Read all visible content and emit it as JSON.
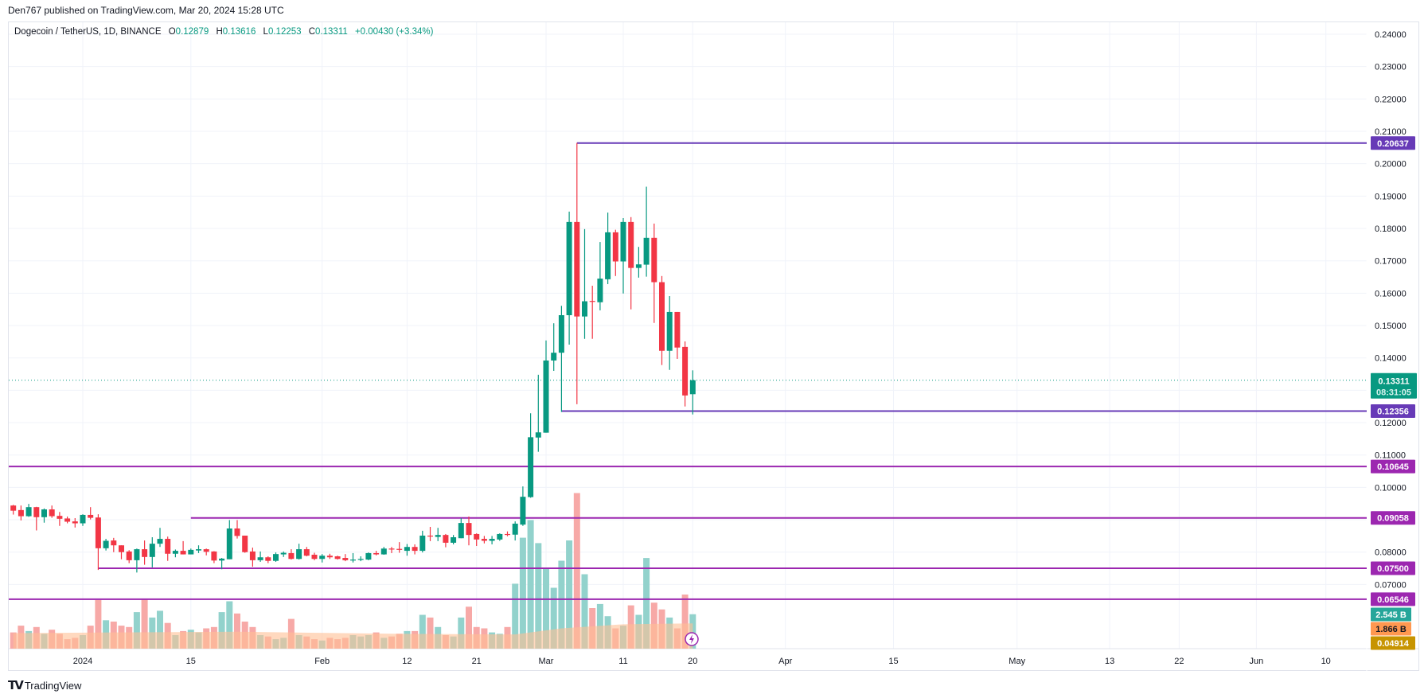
{
  "header": {
    "published": "Den767 published on TradingView.com, Mar 20, 2024 15:28 UTC"
  },
  "legend": {
    "symbol": "Dogecoin / TetherUS, 1D, BINANCE",
    "o_label": "O",
    "o": "0.12879",
    "h_label": "H",
    "h": "0.13616",
    "l_label": "L",
    "l": "0.12253",
    "c_label": "C",
    "c": "0.13311",
    "change": "+0.00430 (+3.34%)"
  },
  "footer": {
    "brand": "TradingView",
    "logo_mark": "TV"
  },
  "colors": {
    "up": "#089981",
    "down": "#f23645",
    "vol_up": "#92d2cc",
    "vol_down": "#f7a9a7",
    "level": "#9c27b0",
    "level_alt": "#673ab7",
    "vol_ma": "#ffbf94"
  },
  "chart_data": {
    "type": "candlestick",
    "title": "Dogecoin / TetherUS, 1D, BINANCE",
    "first_day_offset": -9,
    "day_offset_reference": "2024-01-01",
    "ylim": [
      0.0595,
      0.2445
    ],
    "xlim_days": [
      -10,
      176
    ],
    "grid": true,
    "y_ticks": [
      "0.24000",
      "0.23000",
      "0.22000",
      "0.21000",
      "0.20000",
      "0.19000",
      "0.18000",
      "0.17000",
      "0.16000",
      "0.15000",
      "0.14000",
      "0.12000",
      "0.11000",
      "0.10000",
      "0.08000",
      "0.07000"
    ],
    "x_ticks": [
      {
        "label": "2024",
        "day": 0
      },
      {
        "label": "15",
        "day": 14
      },
      {
        "label": "Feb",
        "day": 31
      },
      {
        "label": "12",
        "day": 42
      },
      {
        "label": "21",
        "day": 51
      },
      {
        "label": "Mar",
        "day": 60
      },
      {
        "label": "11",
        "day": 70
      },
      {
        "label": "20",
        "day": 79
      },
      {
        "label": "Apr",
        "day": 91
      },
      {
        "label": "15",
        "day": 105
      },
      {
        "label": "May",
        "day": 121
      },
      {
        "label": "13",
        "day": 133
      },
      {
        "label": "22",
        "day": 142
      },
      {
        "label": "Jun",
        "day": 152
      },
      {
        "label": "10",
        "day": 161
      }
    ],
    "candles_ohlc": [
      [
        0.0944,
        0.0946,
        0.0916,
        0.0928
      ],
      [
        0.093,
        0.0944,
        0.0898,
        0.0911
      ],
      [
        0.0911,
        0.0949,
        0.0909,
        0.0939
      ],
      [
        0.0939,
        0.094,
        0.0867,
        0.0908
      ],
      [
        0.0908,
        0.0935,
        0.0891,
        0.0932
      ],
      [
        0.0932,
        0.0944,
        0.0906,
        0.0911
      ],
      [
        0.0912,
        0.0924,
        0.0881,
        0.0903
      ],
      [
        0.0904,
        0.091,
        0.0889,
        0.0894
      ],
      [
        0.0895,
        0.0905,
        0.0876,
        0.0889
      ],
      [
        0.0889,
        0.0917,
        0.0881,
        0.0915
      ],
      [
        0.0915,
        0.0939,
        0.0901,
        0.0906
      ],
      [
        0.0907,
        0.0917,
        0.0745,
        0.0812
      ],
      [
        0.0812,
        0.0841,
        0.0805,
        0.0835
      ],
      [
        0.0836,
        0.0844,
        0.08,
        0.0821
      ],
      [
        0.0821,
        0.0821,
        0.0778,
        0.08
      ],
      [
        0.0802,
        0.0806,
        0.0766,
        0.0775
      ],
      [
        0.0775,
        0.0811,
        0.0737,
        0.0809
      ],
      [
        0.0809,
        0.0836,
        0.0761,
        0.0785
      ],
      [
        0.0785,
        0.0846,
        0.0753,
        0.0826
      ],
      [
        0.0826,
        0.0875,
        0.0816,
        0.0841
      ],
      [
        0.0841,
        0.0848,
        0.0773,
        0.0795
      ],
      [
        0.0795,
        0.0808,
        0.0784,
        0.0804
      ],
      [
        0.0804,
        0.0834,
        0.0793,
        0.0793
      ],
      [
        0.0793,
        0.0811,
        0.0793,
        0.0807
      ],
      [
        0.0805,
        0.0821,
        0.0797,
        0.0809
      ],
      [
        0.0809,
        0.0811,
        0.079,
        0.0801
      ],
      [
        0.0802,
        0.0803,
        0.0766,
        0.0774
      ],
      [
        0.0774,
        0.0782,
        0.0747,
        0.078
      ],
      [
        0.0778,
        0.0899,
        0.0778,
        0.0873
      ],
      [
        0.0873,
        0.0899,
        0.0842,
        0.085
      ],
      [
        0.0851,
        0.0851,
        0.0798,
        0.08
      ],
      [
        0.0802,
        0.0814,
        0.0755,
        0.0775
      ],
      [
        0.0775,
        0.0802,
        0.077,
        0.0784
      ],
      [
        0.0784,
        0.0787,
        0.0766,
        0.0773
      ],
      [
        0.0773,
        0.0799,
        0.077,
        0.0794
      ],
      [
        0.0793,
        0.0802,
        0.0785,
        0.0798
      ],
      [
        0.0797,
        0.0809,
        0.0777,
        0.0779
      ],
      [
        0.0779,
        0.0826,
        0.0777,
        0.0809
      ],
      [
        0.0809,
        0.0816,
        0.0787,
        0.0789
      ],
      [
        0.0792,
        0.0798,
        0.0775,
        0.0779
      ],
      [
        0.0779,
        0.0794,
        0.0768,
        0.0789
      ],
      [
        0.0789,
        0.0795,
        0.0779,
        0.0784
      ],
      [
        0.0787,
        0.0789,
        0.0777,
        0.0779
      ],
      [
        0.0782,
        0.0794,
        0.0772,
        0.0775
      ],
      [
        0.0775,
        0.0797,
        0.0768,
        0.0777
      ],
      [
        0.0777,
        0.0787,
        0.0772,
        0.0779
      ],
      [
        0.0777,
        0.0799,
        0.0775,
        0.0797
      ],
      [
        0.0797,
        0.0804,
        0.079,
        0.0793
      ],
      [
        0.0793,
        0.0816,
        0.0792,
        0.0811
      ],
      [
        0.0811,
        0.0816,
        0.0797,
        0.081
      ],
      [
        0.081,
        0.0831,
        0.0798,
        0.0807
      ],
      [
        0.0804,
        0.0825,
        0.0789,
        0.0816
      ],
      [
        0.0816,
        0.0824,
        0.0793,
        0.0804
      ],
      [
        0.0804,
        0.0866,
        0.0799,
        0.0851
      ],
      [
        0.0851,
        0.0878,
        0.0834,
        0.0849
      ],
      [
        0.0847,
        0.0875,
        0.0834,
        0.0853
      ],
      [
        0.0853,
        0.0856,
        0.0815,
        0.0829
      ],
      [
        0.0829,
        0.0853,
        0.0824,
        0.0846
      ],
      [
        0.0843,
        0.0905,
        0.0843,
        0.089
      ],
      [
        0.089,
        0.091,
        0.0821,
        0.0853
      ],
      [
        0.0856,
        0.0858,
        0.0819,
        0.0839
      ],
      [
        0.0841,
        0.085,
        0.0827,
        0.0835
      ],
      [
        0.0835,
        0.085,
        0.0824,
        0.0841
      ],
      [
        0.0839,
        0.0858,
        0.0835,
        0.0856
      ],
      [
        0.0856,
        0.0864,
        0.0849,
        0.0854
      ],
      [
        0.0854,
        0.0895,
        0.0836,
        0.0888
      ],
      [
        0.0885,
        0.1003,
        0.0881,
        0.0971
      ],
      [
        0.097,
        0.1229,
        0.0968,
        0.1155
      ],
      [
        0.1154,
        0.1348,
        0.111,
        0.117
      ],
      [
        0.1169,
        0.1454,
        0.1169,
        0.1392
      ],
      [
        0.1392,
        0.1507,
        0.136,
        0.1416
      ],
      [
        0.1416,
        0.1561,
        0.1233,
        0.1532
      ],
      [
        0.1532,
        0.1852,
        0.1441,
        0.182
      ],
      [
        0.182,
        0.2064,
        0.1257,
        0.1528
      ],
      [
        0.1528,
        0.1798,
        0.1459,
        0.1575
      ],
      [
        0.1576,
        0.1623,
        0.1459,
        0.1574
      ],
      [
        0.1572,
        0.1758,
        0.1547,
        0.1645
      ],
      [
        0.1643,
        0.1849,
        0.1628,
        0.1788
      ],
      [
        0.1788,
        0.1796,
        0.1653,
        0.1698
      ],
      [
        0.1698,
        0.1832,
        0.1599,
        0.182
      ],
      [
        0.182,
        0.1835,
        0.155,
        0.1678
      ],
      [
        0.1678,
        0.1743,
        0.1648,
        0.1689
      ],
      [
        0.1688,
        0.1929,
        0.1651,
        0.1771
      ],
      [
        0.1771,
        0.1815,
        0.1508,
        0.1634
      ],
      [
        0.1634,
        0.1653,
        0.1378,
        0.1422
      ],
      [
        0.1422,
        0.1591,
        0.1363,
        0.1542
      ],
      [
        0.1542,
        0.1542,
        0.1397,
        0.1432
      ],
      [
        0.1434,
        0.1451,
        0.125,
        0.1284
      ],
      [
        0.12879,
        0.13616,
        0.12253,
        0.13311
      ]
    ],
    "volume_billions": [
      1.2,
      1.7,
      1.3,
      1.6,
      1.1,
      1.4,
      1.1,
      0.7,
      0.8,
      1.0,
      1.7,
      3.6,
      2.1,
      2.0,
      1.7,
      1.6,
      2.7,
      3.7,
      2.3,
      2.8,
      1.9,
      1.0,
      1.3,
      1.4,
      1.2,
      1.5,
      1.6,
      2.7,
      3.5,
      2.6,
      2.0,
      1.6,
      1.0,
      0.9,
      0.7,
      0.8,
      2.2,
      1.0,
      0.9,
      0.7,
      0.6,
      0.8,
      0.7,
      0.8,
      1.0,
      0.9,
      1.0,
      1.2,
      0.8,
      0.9,
      1.1,
      1.3,
      1.3,
      2.5,
      2.3,
      1.6,
      1.0,
      0.9,
      2.3,
      3.1,
      1.6,
      1.5,
      1.2,
      1.1,
      1.6,
      4.8,
      8.2,
      9.5,
      7.8,
      6.0,
      4.5,
      6.5,
      8.0,
      11.5,
      5.5,
      3.0,
      3.3,
      2.4,
      1.5,
      1.7,
      3.2,
      2.5,
      6.7,
      3.4,
      2.9,
      2.3,
      1.5,
      4.0,
      2.545
    ],
    "volume_ma_points": [
      [
        -9,
        1.15
      ],
      [
        20,
        1.25
      ],
      [
        40,
        1.1
      ],
      [
        56,
        1.05
      ],
      [
        62,
        1.5
      ],
      [
        70,
        1.8
      ],
      [
        79,
        1.866
      ]
    ],
    "levels": [
      {
        "price": 0.20637,
        "label": "0.20637",
        "from_day": 64,
        "color": "#673ab7"
      },
      {
        "price": 0.12356,
        "label": "0.12356",
        "from_day": 62,
        "color": "#673ab7"
      },
      {
        "price": 0.10645,
        "label": "0.10645",
        "from_day": -10,
        "color": "#9c27b0"
      },
      {
        "price": 0.09058,
        "label": "0.09058",
        "from_day": 14,
        "color": "#9c27b0"
      },
      {
        "price": 0.075,
        "label": "0.07500",
        "from_day": 2,
        "color": "#9c27b0"
      },
      {
        "price": 0.06546,
        "label": "0.06546",
        "from_day": -10,
        "color": "#9c27b0"
      }
    ],
    "last_price": {
      "price": 0.13311,
      "label": "0.13311",
      "countdown": "08:31:05",
      "color": "#089981"
    },
    "volume_label": {
      "label": "2.545 B",
      "color": "#26a69a"
    },
    "volume_ma_label": {
      "label": "1.866 B",
      "color": "#ff9850"
    },
    "extra_label": {
      "label": "0.04914",
      "color": "#c79400"
    }
  }
}
